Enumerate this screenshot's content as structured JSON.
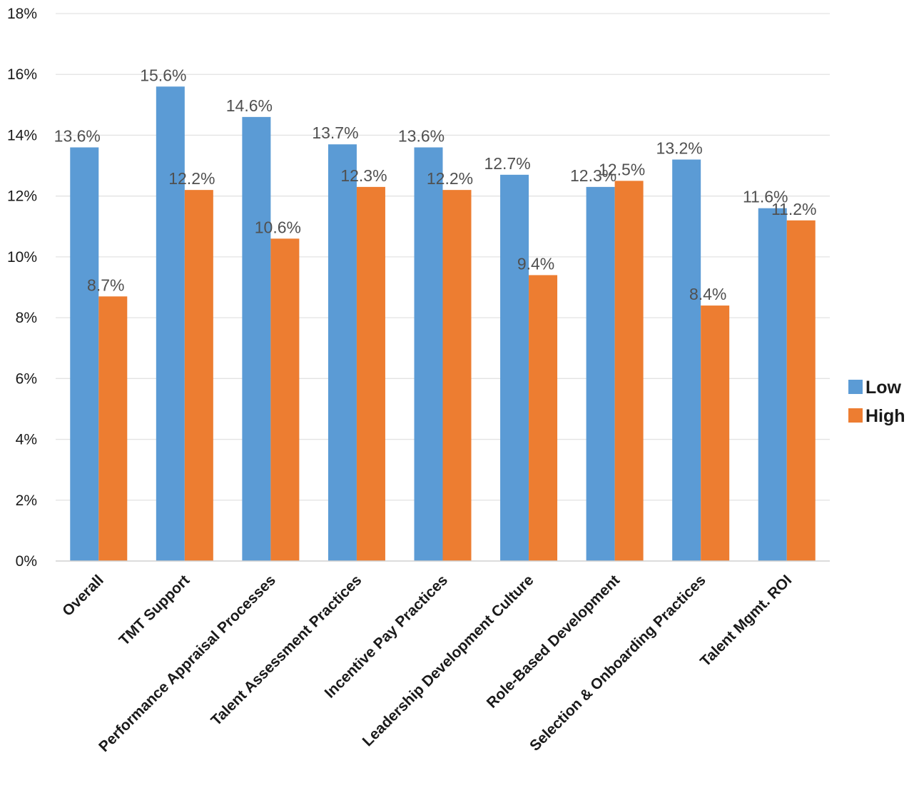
{
  "chart_data": {
    "type": "bar",
    "categories": [
      "Overall",
      "TMT Support",
      "Performance Appraisal Processes",
      "Talent Assessment Practices",
      "Incentive Pay Practices",
      "Leadership Development Culture",
      "Role-Based Development",
      "Selection & Onboarding Practices",
      "Talent Mgmt. ROI"
    ],
    "series": [
      {
        "name": "Low",
        "color": "#5B9BD5",
        "values": [
          13.6,
          15.6,
          14.6,
          13.7,
          13.6,
          12.7,
          12.3,
          13.2,
          11.6
        ],
        "labels": [
          "13.6%",
          "15.6%",
          "14.6%",
          "13.7%",
          "13.6%",
          "12.7%",
          "12.3%",
          "13.2%",
          "11.6%"
        ]
      },
      {
        "name": "High",
        "color": "#ED7D31",
        "values": [
          8.7,
          12.2,
          10.6,
          12.3,
          12.2,
          9.4,
          12.5,
          8.4,
          11.2
        ],
        "labels": [
          "8.7%",
          "12.2%",
          "10.6%",
          "12.3%",
          "12.2%",
          "9.4%",
          "12.5%",
          "8.4%",
          "11.2%"
        ]
      }
    ],
    "ylim": [
      0,
      18
    ],
    "yticks": [
      0,
      2,
      4,
      6,
      8,
      10,
      12,
      14,
      16,
      18
    ],
    "ytick_labels": [
      "0%",
      "2%",
      "4%",
      "6%",
      "8%",
      "10%",
      "12%",
      "14%",
      "16%",
      "18%"
    ],
    "grid": true,
    "legend_position": "right"
  }
}
